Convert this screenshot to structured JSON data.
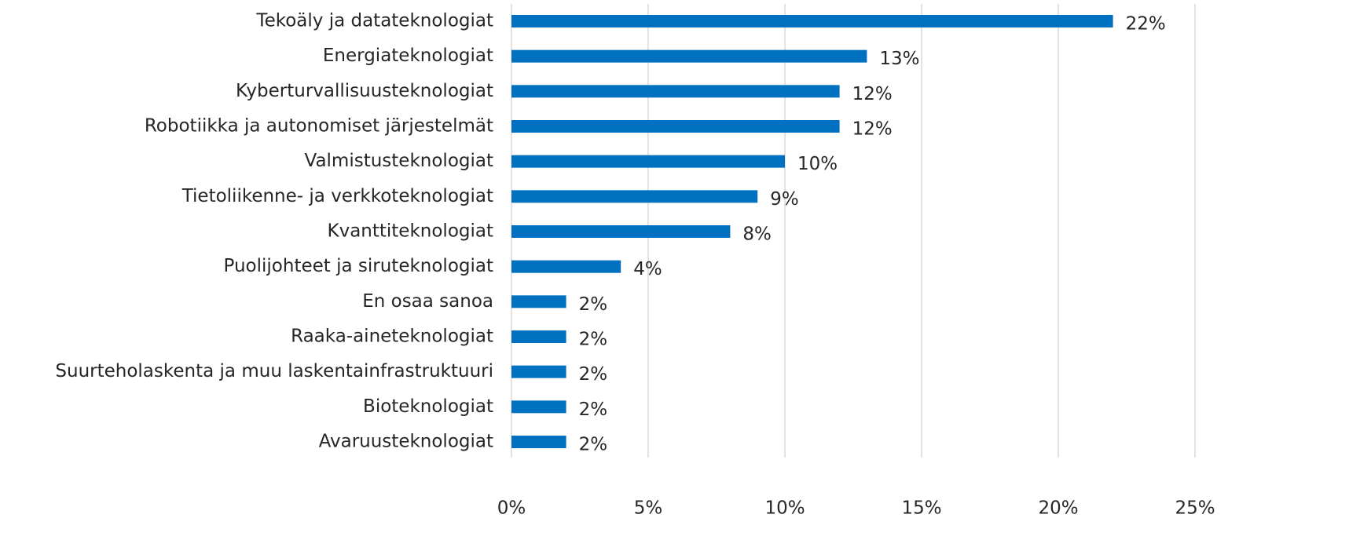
{
  "chart_data": {
    "type": "bar",
    "orientation": "horizontal",
    "categories": [
      "Tekoäly ja datateknologiat",
      "Energiateknologiat",
      "Kyberturvallisuusteknologiat",
      "Robotiikka ja autonomiset järjestelmät",
      "Valmistusteknologiat",
      "Tietoliikenne- ja verkkoteknologiat",
      "Kvanttiteknologiat",
      "Puolijohteet ja siruteknologiat",
      "En osaa sanoa",
      "Raaka-aineteknologiat",
      "Suurteholaskenta ja muu laskentainfrastruktuuri",
      "Bioteknologiat",
      "Avaruusteknologiat"
    ],
    "values": [
      22,
      13,
      12,
      12,
      10,
      9,
      8,
      4,
      2,
      2,
      2,
      2,
      2
    ],
    "value_labels": [
      "22%",
      "13%",
      "12%",
      "12%",
      "10%",
      "9%",
      "8%",
      "4%",
      "2%",
      "2%",
      "2%",
      "2%",
      "2%"
    ],
    "color": "#0070c0",
    "xlim": [
      0,
      25
    ],
    "xticks": [
      {
        "value": 0,
        "label": "0%"
      },
      {
        "value": 5,
        "label": "5%"
      },
      {
        "value": 10,
        "label": "10%"
      },
      {
        "value": 15,
        "label": "15%"
      },
      {
        "value": 20,
        "label": "20%"
      },
      {
        "value": 25,
        "label": "25%"
      }
    ],
    "grid": true
  }
}
